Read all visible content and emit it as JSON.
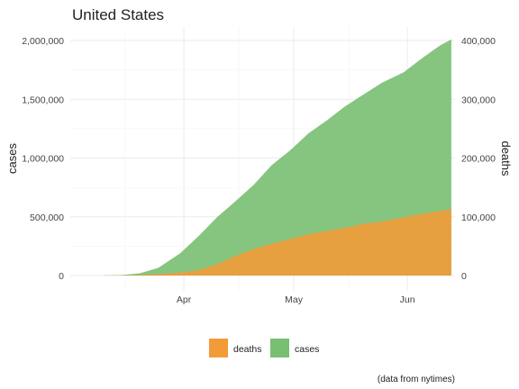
{
  "chart_data": {
    "type": "area",
    "title": "United States",
    "caption": "(data from nytimes)",
    "ylabel_left": "cases",
    "ylabel_right": "deaths",
    "x_ticks": [
      "Apr",
      "May",
      "Jun"
    ],
    "x_tick_dates": [
      "2020-04-01",
      "2020-05-01",
      "2020-06-01"
    ],
    "x_range": [
      "2020-03-01",
      "2020-06-14"
    ],
    "y_left_range": [
      0,
      2000000
    ],
    "y_left_ticks": [
      "0",
      "500,000",
      "1,000,000",
      "1,500,000",
      "2,000,000"
    ],
    "y_left_tick_values": [
      0,
      500000,
      1000000,
      1500000,
      2000000
    ],
    "y_right_range": [
      0,
      400000
    ],
    "y_right_ticks": [
      "0",
      "100,000",
      "200,000",
      "300,000",
      "400,000"
    ],
    "y_right_tick_values": [
      0,
      100000,
      200000,
      300000,
      400000
    ],
    "grid": true,
    "legend_position": "bottom",
    "legend": [
      {
        "key": "deaths",
        "label": "deaths",
        "color": "#f29b38"
      },
      {
        "key": "cases",
        "label": "cases",
        "color": "#78bf72"
      }
    ],
    "series": [
      {
        "name": "cases",
        "color": "#78bf72",
        "axis": "left",
        "x": [
          "2020-03-10",
          "2020-03-15",
          "2020-03-20",
          "2020-03-25",
          "2020-03-31",
          "2020-04-05",
          "2020-04-10",
          "2020-04-15",
          "2020-04-20",
          "2020-04-25",
          "2020-04-30",
          "2020-05-05",
          "2020-05-10",
          "2020-05-15",
          "2020-05-20",
          "2020-05-25",
          "2020-05-31",
          "2020-06-05",
          "2020-06-10",
          "2020-06-13"
        ],
        "values": [
          1000,
          3500,
          19000,
          65000,
          190000,
          335000,
          495000,
          630000,
          770000,
          940000,
          1065000,
          1210000,
          1320000,
          1440000,
          1540000,
          1640000,
          1730000,
          1850000,
          1960000,
          2010000
        ]
      },
      {
        "name": "deaths",
        "color": "#f29b38",
        "axis": "right",
        "x": [
          "2020-03-10",
          "2020-03-15",
          "2020-03-20",
          "2020-03-25",
          "2020-03-31",
          "2020-04-05",
          "2020-04-10",
          "2020-04-15",
          "2020-04-20",
          "2020-04-25",
          "2020-04-30",
          "2020-05-05",
          "2020-05-10",
          "2020-05-15",
          "2020-05-20",
          "2020-05-25",
          "2020-05-31",
          "2020-06-05",
          "2020-06-10",
          "2020-06-13"
        ],
        "values": [
          100,
          500,
          1200,
          2500,
          5000,
          9000,
          19000,
          33000,
          45000,
          54000,
          62000,
          70000,
          76000,
          81000,
          88000,
          92000,
          99000,
          105000,
          110000,
          113000
        ]
      }
    ]
  }
}
